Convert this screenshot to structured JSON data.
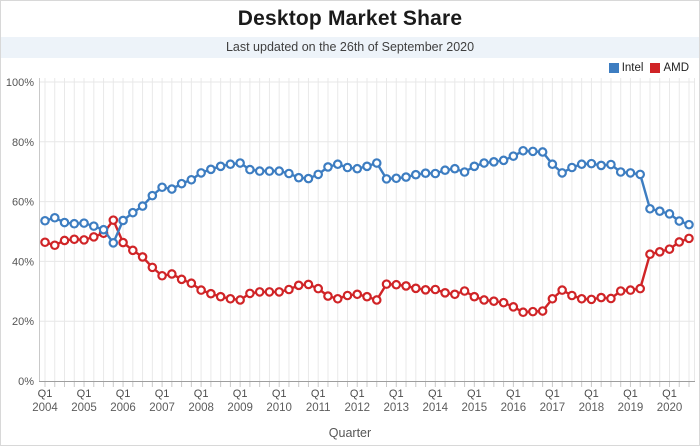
{
  "header": {
    "title": "Desktop Market Share",
    "subtitle": "Last updated on the 26th of September 2020"
  },
  "legend": [
    {
      "label": "Intel",
      "color": "#3d7dc1"
    },
    {
      "label": "AMD",
      "color": "#d02427"
    }
  ],
  "chart_data": {
    "type": "line",
    "title": "Desktop Market Share",
    "xlabel": "Quarter",
    "ylim": [
      0,
      100
    ],
    "grid": "vertical line per quarter, horizontal lines every 20%",
    "legend_position": "top-right",
    "x_axis": {
      "title": "Quarter",
      "quarter_label": "Q1",
      "years": [
        2004,
        2005,
        2006,
        2007,
        2008,
        2009,
        2010,
        2011,
        2012,
        2013,
        2014,
        2015,
        2016,
        2017,
        2018,
        2019,
        2020
      ],
      "quarters_count": 67,
      "x_range": [
        "Q1 2004",
        "Q3 2020"
      ]
    },
    "y_axis": {
      "tick_labels": [
        "0%",
        "20%",
        "40%",
        "60%",
        "80%",
        "100%"
      ],
      "min": 0,
      "max": 100
    },
    "series": [
      {
        "name": "Intel",
        "color": "#3d7dc1",
        "values": [
          53.6,
          54.6,
          53.0,
          52.6,
          52.8,
          51.8,
          50.6,
          46.2,
          53.7,
          56.3,
          58.5,
          62.0,
          64.8,
          64.2,
          66.0,
          67.3,
          69.6,
          70.8,
          71.8,
          72.5,
          72.9,
          70.7,
          70.2,
          70.2,
          70.2,
          69.4,
          68.0,
          67.7,
          69.1,
          71.6,
          72.5,
          71.4,
          71.0,
          71.8,
          72.9,
          67.6,
          67.8,
          68.2,
          69.0,
          69.5,
          69.4,
          70.5,
          71.0,
          69.9,
          71.8,
          72.9,
          73.3,
          73.8,
          75.2,
          77.0,
          76.8,
          76.6,
          72.5,
          69.6,
          71.4,
          72.5,
          72.7,
          72.1,
          72.4,
          69.9,
          69.6,
          69.1,
          57.6,
          56.8,
          55.9,
          53.5,
          52.3
        ]
      },
      {
        "name": "AMD",
        "color": "#d02427",
        "values": [
          46.4,
          45.4,
          47.0,
          47.4,
          47.2,
          48.2,
          49.4,
          53.8,
          46.3,
          43.7,
          41.5,
          38.0,
          35.2,
          35.8,
          34.0,
          32.7,
          30.4,
          29.2,
          28.2,
          27.5,
          27.1,
          29.3,
          29.8,
          29.8,
          29.8,
          30.6,
          32.0,
          32.3,
          30.9,
          28.4,
          27.5,
          28.6,
          29.0,
          28.2,
          27.1,
          32.4,
          32.2,
          31.8,
          31.0,
          30.5,
          30.6,
          29.5,
          29.0,
          30.1,
          28.2,
          27.1,
          26.7,
          26.2,
          24.8,
          23.0,
          23.2,
          23.4,
          27.5,
          30.4,
          28.6,
          27.5,
          27.3,
          27.9,
          27.6,
          30.1,
          30.4,
          30.9,
          42.4,
          43.2,
          44.1,
          46.5,
          47.7
        ]
      }
    ]
  }
}
